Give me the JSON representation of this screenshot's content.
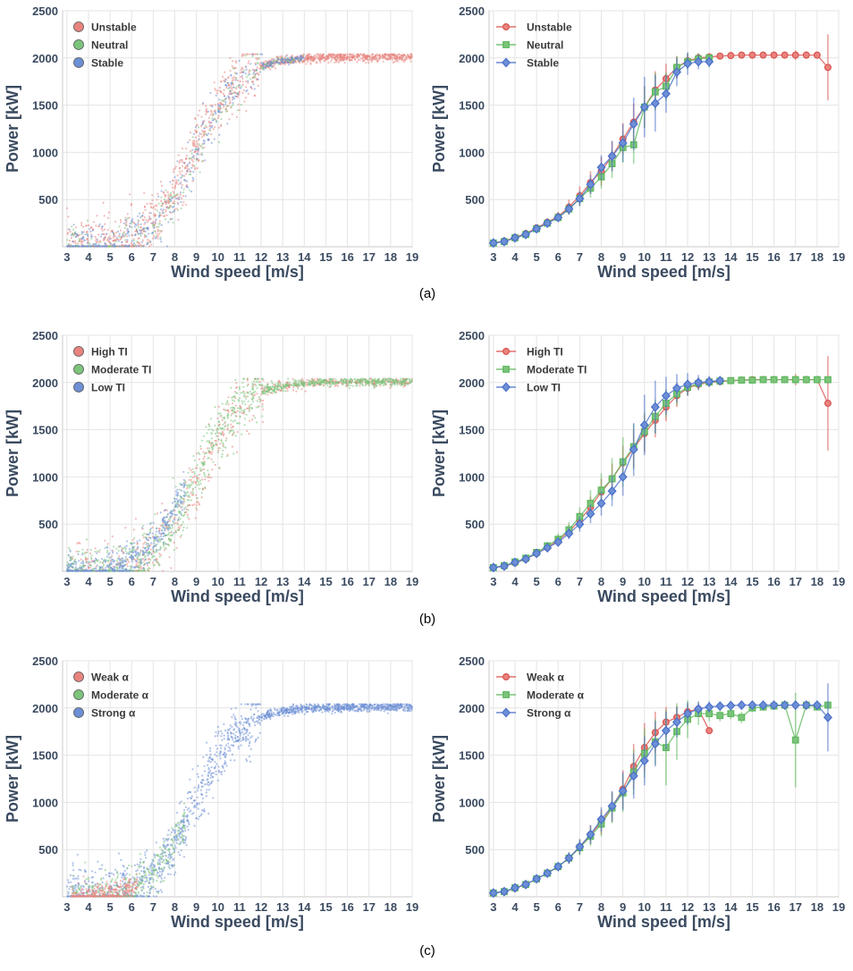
{
  "captions": [
    "(a)",
    "(b)",
    "(c)"
  ],
  "colors": {
    "red": "#d9534f",
    "green": "#5cb85c",
    "blue": "#4a6fc9",
    "red_fill": "#e8837e",
    "green_fill": "#7cc47c",
    "blue_fill": "#6d8fd6"
  },
  "chart_data": [
    {
      "type": "scatter",
      "panel": "a-left",
      "xlabel": "Wind speed [m/s]",
      "ylabel": "Power [kW]",
      "xlim": [
        2.8,
        19
      ],
      "ylim": [
        0,
        2500
      ],
      "xticks": [
        3,
        4,
        5,
        6,
        7,
        8,
        9,
        10,
        11,
        12,
        13,
        14,
        15,
        16,
        17,
        18,
        19
      ],
      "yticks": [
        500,
        1000,
        1500,
        2000,
        2500
      ],
      "series": [
        {
          "name": "Unstable",
          "color": "red"
        },
        {
          "name": "Neutral",
          "color": "green"
        },
        {
          "name": "Stable",
          "color": "blue"
        }
      ]
    },
    {
      "type": "line",
      "panel": "a-right",
      "xlabel": "Wind speed [m/s]",
      "ylabel": "Power [kW]",
      "xlim": [
        2.8,
        19
      ],
      "ylim": [
        0,
        2500
      ],
      "xticks": [
        3,
        4,
        5,
        6,
        7,
        8,
        9,
        10,
        11,
        12,
        13,
        14,
        15,
        16,
        17,
        18,
        19
      ],
      "yticks": [
        500,
        1000,
        1500,
        2000,
        2500
      ],
      "series": [
        {
          "name": "Unstable",
          "color": "red",
          "marker": "circle",
          "x": [
            3,
            3.5,
            4,
            4.5,
            5,
            5.5,
            6,
            6.5,
            7,
            7.5,
            8,
            8.5,
            9,
            9.5,
            10,
            10.5,
            11,
            11.5,
            12,
            12.5,
            13,
            13.5,
            14,
            14.5,
            15,
            15.5,
            16,
            16.5,
            17,
            17.5,
            18,
            18.5
          ],
          "y": [
            40,
            60,
            100,
            140,
            200,
            260,
            320,
            420,
            540,
            680,
            800,
            960,
            1140,
            1320,
            1480,
            1660,
            1780,
            1900,
            1970,
            2000,
            2010,
            2020,
            2025,
            2030,
            2030,
            2030,
            2030,
            2030,
            2030,
            2030,
            2030,
            1900
          ],
          "err": [
            5,
            10,
            20,
            25,
            30,
            40,
            50,
            80,
            100,
            120,
            150,
            160,
            170,
            200,
            220,
            200,
            160,
            120,
            80,
            50,
            40,
            30,
            20,
            15,
            15,
            15,
            15,
            15,
            50,
            40,
            30,
            350
          ]
        },
        {
          "name": "Neutral",
          "color": "green",
          "marker": "square",
          "x": [
            3,
            3.5,
            4,
            4.5,
            5,
            5.5,
            6,
            6.5,
            7,
            7.5,
            8,
            8.5,
            9,
            9.5,
            10,
            10.5,
            11,
            11.5,
            12,
            12.5,
            13
          ],
          "y": [
            40,
            55,
            95,
            130,
            190,
            250,
            310,
            400,
            510,
            620,
            740,
            880,
            1050,
            1080,
            1480,
            1640,
            1700,
            1900,
            1960,
            1990,
            2000
          ],
          "err": [
            5,
            10,
            15,
            20,
            25,
            30,
            40,
            60,
            80,
            100,
            120,
            150,
            160,
            200,
            220,
            200,
            150,
            120,
            80,
            60,
            40
          ]
        },
        {
          "name": "Stable",
          "color": "blue",
          "marker": "diamond",
          "x": [
            3,
            3.5,
            4,
            4.5,
            5,
            5.5,
            6,
            6.5,
            7,
            7.5,
            8,
            8.5,
            9,
            9.5,
            10,
            10.5,
            11,
            11.5,
            12,
            12.5,
            13
          ],
          "y": [
            40,
            55,
            95,
            130,
            190,
            250,
            310,
            400,
            510,
            660,
            840,
            960,
            1100,
            1300,
            1480,
            1520,
            1620,
            1850,
            1940,
            1960,
            1960
          ],
          "err": [
            5,
            10,
            15,
            20,
            25,
            30,
            40,
            60,
            80,
            100,
            130,
            160,
            200,
            280,
            320,
            300,
            200,
            150,
            120,
            80,
            60
          ]
        }
      ]
    },
    {
      "type": "scatter",
      "panel": "b-left",
      "xlabel": "Wind speed [m/s]",
      "ylabel": "Power [kW]",
      "xlim": [
        2.8,
        19
      ],
      "ylim": [
        0,
        2500
      ],
      "xticks": [
        3,
        4,
        5,
        6,
        7,
        8,
        9,
        10,
        11,
        12,
        13,
        14,
        15,
        16,
        17,
        18,
        19
      ],
      "yticks": [
        500,
        1000,
        1500,
        2000,
        2500
      ],
      "series": [
        {
          "name": "High TI",
          "color": "red"
        },
        {
          "name": "Moderate TI",
          "color": "green"
        },
        {
          "name": "Low TI",
          "color": "blue"
        }
      ]
    },
    {
      "type": "line",
      "panel": "b-right",
      "xlabel": "Wind speed [m/s]",
      "ylabel": "Power [kW]",
      "xlim": [
        2.8,
        19
      ],
      "ylim": [
        0,
        2500
      ],
      "xticks": [
        3,
        4,
        5,
        6,
        7,
        8,
        9,
        10,
        11,
        12,
        13,
        14,
        15,
        16,
        17,
        18,
        19
      ],
      "yticks": [
        500,
        1000,
        1500,
        2000,
        2500
      ],
      "series": [
        {
          "name": "High TI",
          "color": "red",
          "marker": "circle",
          "x": [
            3,
            3.5,
            4,
            4.5,
            5,
            5.5,
            6,
            6.5,
            7,
            7.5,
            8,
            8.5,
            9,
            9.5,
            10,
            10.5,
            11,
            11.5,
            12,
            12.5,
            13,
            13.5,
            14,
            14.5,
            15,
            15.5,
            16,
            16.5,
            17,
            17.5,
            18,
            18.5
          ],
          "y": [
            40,
            55,
            90,
            130,
            190,
            250,
            330,
            420,
            540,
            680,
            840,
            980,
            1150,
            1300,
            1460,
            1600,
            1740,
            1860,
            1940,
            1980,
            2000,
            2010,
            2020,
            2025,
            2030,
            2030,
            2030,
            2030,
            2030,
            2030,
            2030,
            1780
          ],
          "err": [
            5,
            10,
            20,
            25,
            30,
            40,
            50,
            70,
            90,
            110,
            140,
            160,
            180,
            200,
            200,
            180,
            150,
            120,
            80,
            60,
            40,
            30,
            20,
            15,
            15,
            15,
            15,
            15,
            60,
            40,
            30,
            500
          ]
        },
        {
          "name": "Moderate TI",
          "color": "green",
          "marker": "square",
          "x": [
            3,
            3.5,
            4,
            4.5,
            5,
            5.5,
            6,
            6.5,
            7,
            7.5,
            8,
            8.5,
            9,
            9.5,
            10,
            10.5,
            11,
            11.5,
            12,
            12.5,
            13,
            13.5,
            14,
            14.5,
            15,
            15.5,
            16,
            16.5,
            17,
            17.5,
            18,
            18.5
          ],
          "y": [
            40,
            60,
            100,
            140,
            200,
            270,
            340,
            440,
            580,
            720,
            860,
            980,
            1160,
            1320,
            1480,
            1640,
            1780,
            1880,
            1950,
            1990,
            2005,
            2015,
            2020,
            2025,
            2025,
            2030,
            2030,
            2030,
            2030,
            2030,
            2030,
            2030
          ],
          "err": [
            5,
            10,
            20,
            25,
            30,
            40,
            60,
            80,
            100,
            140,
            180,
            220,
            260,
            240,
            200,
            180,
            150,
            120,
            80,
            60,
            40,
            30,
            20,
            15,
            15,
            15,
            15,
            15,
            40,
            30,
            20,
            30
          ]
        },
        {
          "name": "Low TI",
          "color": "blue",
          "marker": "diamond",
          "x": [
            3,
            3.5,
            4,
            4.5,
            5,
            5.5,
            6,
            6.5,
            7,
            7.5,
            8,
            8.5,
            9,
            9.5,
            10,
            10.5,
            11,
            11.5,
            12,
            12.5,
            13,
            13.5
          ],
          "y": [
            40,
            55,
            95,
            130,
            190,
            250,
            310,
            400,
            500,
            610,
            720,
            850,
            1000,
            1290,
            1550,
            1740,
            1860,
            1940,
            1980,
            2000,
            2010,
            2020
          ],
          "err": [
            5,
            10,
            15,
            20,
            25,
            30,
            40,
            60,
            80,
            100,
            130,
            160,
            200,
            280,
            320,
            280,
            200,
            150,
            120,
            80,
            60,
            40
          ]
        }
      ]
    },
    {
      "type": "scatter",
      "panel": "c-left",
      "xlabel": "Wind speed [m/s]",
      "ylabel": "Power [kW]",
      "xlim": [
        2.8,
        19
      ],
      "ylim": [
        0,
        2500
      ],
      "xticks": [
        3,
        4,
        5,
        6,
        7,
        8,
        9,
        10,
        11,
        12,
        13,
        14,
        15,
        16,
        17,
        18,
        19
      ],
      "yticks": [
        500,
        1000,
        1500,
        2000,
        2500
      ],
      "series": [
        {
          "name": "Weak α",
          "color": "red"
        },
        {
          "name": "Moderate α",
          "color": "green"
        },
        {
          "name": "Strong α",
          "color": "blue"
        }
      ]
    },
    {
      "type": "line",
      "panel": "c-right",
      "xlabel": "Wind speed [m/s]",
      "ylabel": "Power [kW]",
      "xlim": [
        2.8,
        19
      ],
      "ylim": [
        0,
        2500
      ],
      "xticks": [
        3,
        4,
        5,
        6,
        7,
        8,
        9,
        10,
        11,
        12,
        13,
        14,
        15,
        16,
        17,
        18,
        19
      ],
      "yticks": [
        500,
        1000,
        1500,
        2000,
        2500
      ],
      "series": [
        {
          "name": "Weak α",
          "color": "red",
          "marker": "circle",
          "x": [
            3,
            3.5,
            4,
            4.5,
            5,
            5.5,
            6,
            6.5,
            7,
            7.5,
            8,
            8.5,
            9,
            9.5,
            10,
            10.5,
            11,
            11.5,
            12,
            12.5,
            13
          ],
          "y": [
            40,
            55,
            90,
            130,
            190,
            250,
            320,
            410,
            530,
            660,
            790,
            950,
            1140,
            1380,
            1580,
            1740,
            1850,
            1900,
            1960,
            1990,
            1760
          ],
          "err": [
            5,
            10,
            15,
            20,
            25,
            30,
            40,
            60,
            80,
            100,
            130,
            160,
            200,
            240,
            260,
            220,
            160,
            120,
            80,
            40,
            0
          ]
        },
        {
          "name": "Moderate α",
          "color": "green",
          "marker": "square",
          "x": [
            3,
            3.5,
            4,
            4.5,
            5,
            5.5,
            6,
            6.5,
            7,
            7.5,
            8,
            8.5,
            9,
            9.5,
            10,
            10.5,
            11,
            11.5,
            12,
            12.5,
            13,
            13.5,
            14,
            14.5,
            15,
            15.5,
            16,
            16.5,
            17,
            17.5,
            18,
            18.5
          ],
          "y": [
            40,
            55,
            95,
            130,
            190,
            250,
            320,
            410,
            520,
            640,
            770,
            940,
            1100,
            1320,
            1520,
            1640,
            1580,
            1750,
            1880,
            1940,
            1940,
            1920,
            1940,
            1900,
            2000,
            2010,
            2020,
            2030,
            1660,
            2030,
            2010,
            2030
          ],
          "err": [
            5,
            10,
            15,
            20,
            25,
            30,
            40,
            60,
            80,
            100,
            130,
            160,
            200,
            240,
            260,
            240,
            400,
            300,
            200,
            120,
            80,
            60,
            60,
            60,
            40,
            30,
            20,
            20,
            500,
            30,
            30,
            40
          ]
        },
        {
          "name": "Strong α",
          "color": "blue",
          "marker": "diamond",
          "x": [
            3,
            3.5,
            4,
            4.5,
            5,
            5.5,
            6,
            6.5,
            7,
            7.5,
            8,
            8.5,
            9,
            9.5,
            10,
            10.5,
            11,
            11.5,
            12,
            12.5,
            13,
            13.5,
            14,
            14.5,
            15,
            15.5,
            16,
            16.5,
            17,
            17.5,
            18,
            18.5
          ],
          "y": [
            40,
            55,
            95,
            130,
            190,
            250,
            320,
            410,
            530,
            660,
            820,
            960,
            1120,
            1280,
            1440,
            1620,
            1760,
            1850,
            1940,
            1990,
            2010,
            2020,
            2025,
            2030,
            2030,
            2030,
            2030,
            2030,
            2030,
            2030,
            2030,
            1900
          ],
          "err": [
            5,
            10,
            15,
            20,
            25,
            30,
            40,
            60,
            80,
            100,
            130,
            160,
            200,
            240,
            260,
            240,
            200,
            160,
            120,
            80,
            60,
            40,
            30,
            20,
            20,
            20,
            20,
            20,
            20,
            20,
            20,
            360
          ]
        }
      ]
    }
  ]
}
